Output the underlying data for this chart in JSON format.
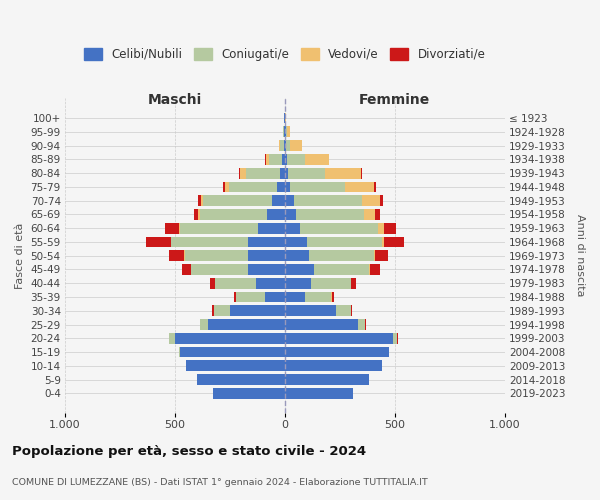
{
  "age_groups": [
    "100+",
    "95-99",
    "90-94",
    "85-89",
    "80-84",
    "75-79",
    "70-74",
    "65-69",
    "60-64",
    "55-59",
    "50-54",
    "45-49",
    "40-44",
    "35-39",
    "30-34",
    "25-29",
    "20-24",
    "15-19",
    "10-14",
    "5-9",
    "0-4"
  ],
  "birth_years": [
    "≤ 1923",
    "1924-1928",
    "1929-1933",
    "1934-1938",
    "1939-1943",
    "1944-1948",
    "1949-1953",
    "1954-1958",
    "1959-1963",
    "1964-1968",
    "1969-1973",
    "1974-1978",
    "1979-1983",
    "1984-1988",
    "1989-1993",
    "1994-1998",
    "1999-2003",
    "2004-2008",
    "2009-2013",
    "2014-2018",
    "2019-2023"
  ],
  "males_celibi": [
    2,
    4,
    5,
    12,
    20,
    35,
    60,
    80,
    120,
    168,
    168,
    168,
    130,
    92,
    248,
    348,
    498,
    478,
    448,
    398,
    328
  ],
  "males_coniugati": [
    1,
    3,
    15,
    60,
    155,
    218,
    310,
    308,
    358,
    348,
    288,
    258,
    188,
    128,
    76,
    38,
    28,
    5,
    0,
    0,
    0
  ],
  "males_vedovi": [
    0,
    1,
    5,
    15,
    30,
    20,
    10,
    5,
    5,
    3,
    2,
    1,
    1,
    1,
    0,
    0,
    0,
    0,
    0,
    0,
    0
  ],
  "males_divorziati": [
    0,
    0,
    1,
    2,
    5,
    10,
    15,
    20,
    60,
    112,
    70,
    40,
    20,
    10,
    5,
    2,
    1,
    0,
    0,
    0,
    0
  ],
  "females_nubili": [
    2,
    5,
    5,
    10,
    15,
    25,
    40,
    50,
    70,
    100,
    112,
    132,
    120,
    90,
    232,
    332,
    492,
    472,
    442,
    382,
    312
  ],
  "females_coniugate": [
    1,
    5,
    20,
    80,
    170,
    250,
    312,
    312,
    352,
    342,
    292,
    252,
    182,
    122,
    70,
    35,
    20,
    3,
    0,
    0,
    0
  ],
  "females_vedove": [
    2,
    15,
    52,
    110,
    160,
    130,
    80,
    50,
    30,
    10,
    5,
    2,
    1,
    1,
    0,
    0,
    0,
    0,
    0,
    0,
    0
  ],
  "females_divorziate": [
    0,
    0,
    1,
    2,
    5,
    10,
    15,
    20,
    55,
    92,
    62,
    46,
    20,
    10,
    5,
    2,
    1,
    0,
    0,
    0,
    0
  ],
  "colors": {
    "celibi_nubili": "#4472c4",
    "coniugati": "#b5c9a0",
    "vedovi": "#f0c070",
    "divorziati": "#cc1818"
  },
  "title": "Popolazione per età, sesso e stato civile - 2024",
  "subtitle": "COMUNE DI LUMEZZANE (BS) - Dati ISTAT 1° gennaio 2024 - Elaborazione TUTTITALIA.IT",
  "xlabel_left": "Maschi",
  "xlabel_right": "Femmine",
  "ylabel_left": "Fasce di età",
  "ylabel_right": "Anni di nascita",
  "legend_labels": [
    "Celibi/Nubili",
    "Coniugati/e",
    "Vedovi/e",
    "Divorziati/e"
  ],
  "background_color": "#f5f5f5",
  "xlim": 1000
}
